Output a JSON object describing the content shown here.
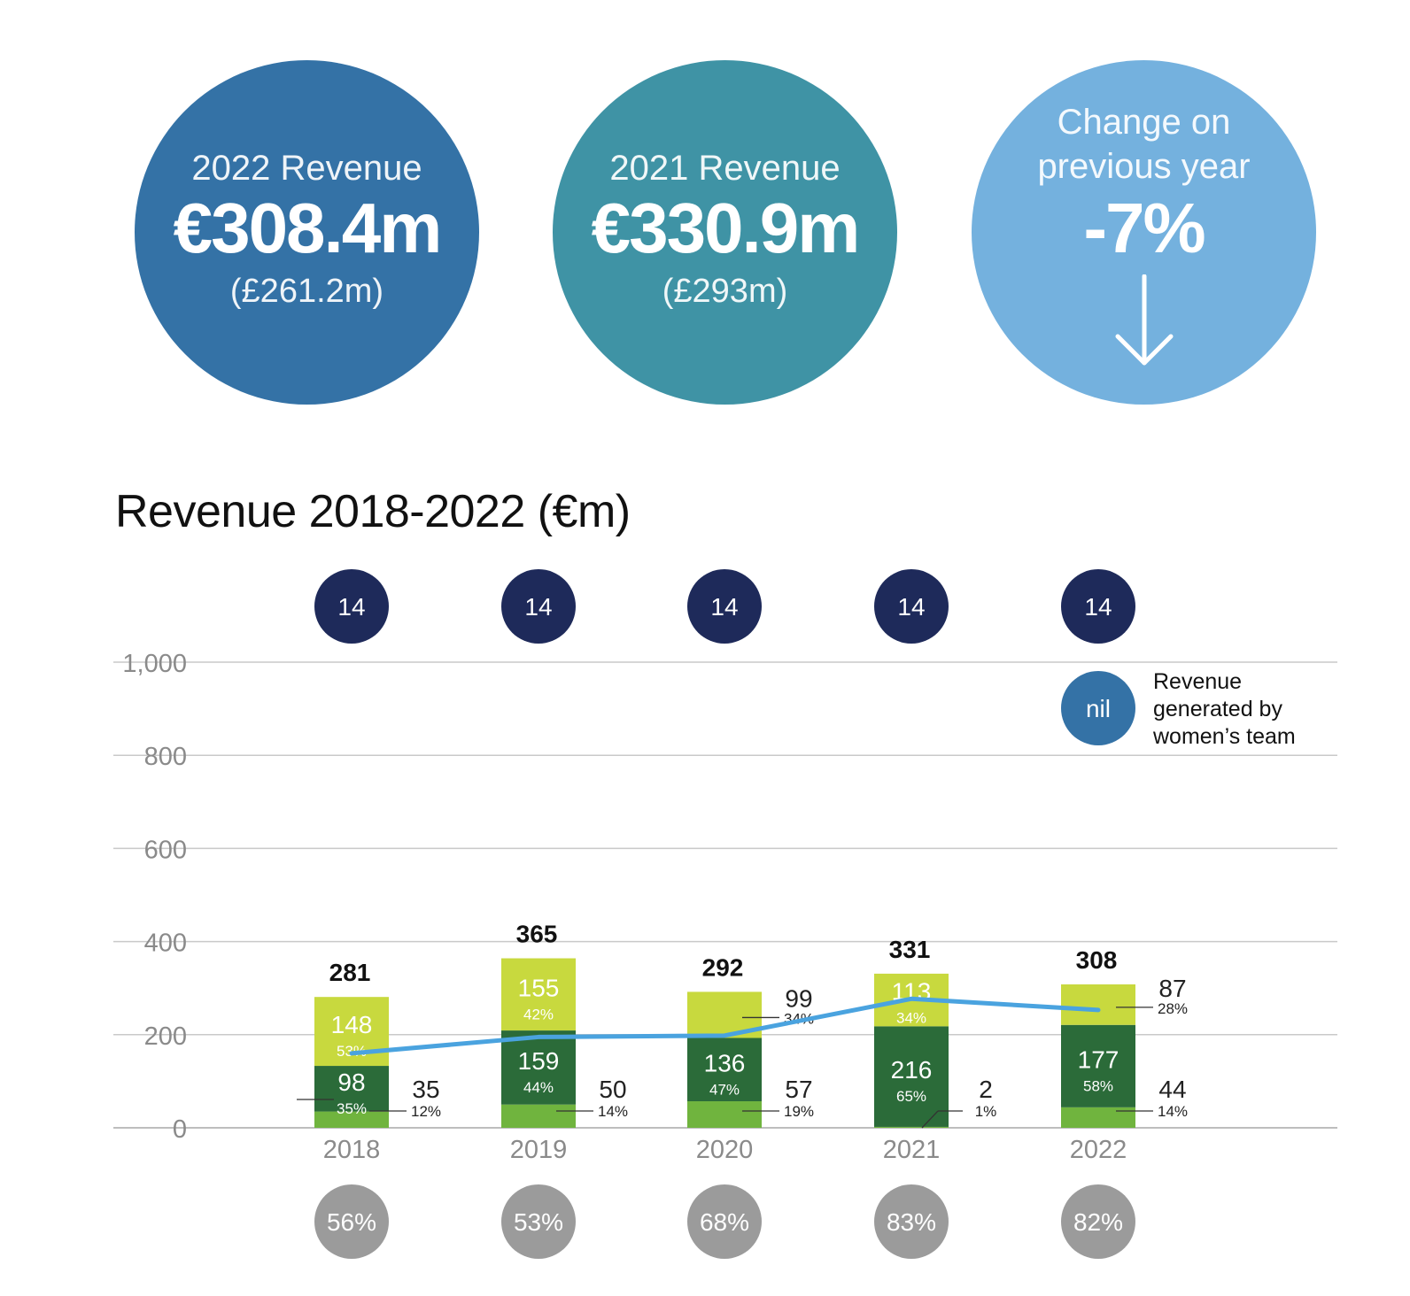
{
  "summary": {
    "c1": {
      "label": "2022 Revenue",
      "value": "€308.4m",
      "sub": "(£261.2m)",
      "color": "#3472a6"
    },
    "c2": {
      "label": "2021 Revenue",
      "value": "€330.9m",
      "sub": "(£293m)",
      "color": "#3f93a5"
    },
    "c3": {
      "label_line1": "Change on",
      "label_line2": "previous year",
      "value": "-7%",
      "color": "#74b1de",
      "icon": "arrow-down-icon"
    }
  },
  "chart_data": {
    "type": "bar",
    "title": "Revenue 2018-2022 (€m)",
    "categories": [
      "2018",
      "2019",
      "2020",
      "2021",
      "2022"
    ],
    "ylim": [
      0,
      1000
    ],
    "yticks": [
      "0",
      "200",
      "400",
      "600",
      "800",
      "1,000"
    ],
    "totals": [
      "281",
      "365",
      "292",
      "331",
      "308"
    ],
    "series": [
      {
        "color": "#70b43e",
        "values": [
          35,
          50,
          57,
          2,
          44
        ],
        "labels": [
          "35",
          "50",
          "57",
          "2",
          "44"
        ],
        "pct": [
          "12%",
          "14%",
          "19%",
          "1%",
          "14%"
        ]
      },
      {
        "color": "#2b6b39",
        "values": [
          98,
          159,
          136,
          216,
          177
        ],
        "labels": [
          "98",
          "159",
          "136",
          "216",
          "177"
        ],
        "pct": [
          "35%",
          "44%",
          "47%",
          "65%",
          "58%"
        ]
      },
      {
        "color": "#c8d93e",
        "values": [
          148,
          155,
          99,
          113,
          87
        ],
        "labels": [
          "148",
          "155",
          "99",
          "113",
          "87"
        ],
        "pct": [
          "53%",
          "42%",
          "34%",
          "34%",
          "28%"
        ]
      }
    ],
    "line": {
      "color": "#4aa3df",
      "values": [
        160,
        195,
        198,
        277,
        253
      ]
    },
    "top_badges": [
      "14",
      "14",
      "14",
      "14",
      "14"
    ],
    "top_badge_color": "#1e2a5a",
    "bottom_badges": [
      "56%",
      "53%",
      "68%",
      "83%",
      "82%"
    ],
    "bottom_badge_color": "#9b9b9b",
    "legend": {
      "badge": "nil",
      "badge_color": "#3472a6",
      "lines": [
        "Revenue",
        "generated by",
        "women’s team"
      ]
    }
  }
}
